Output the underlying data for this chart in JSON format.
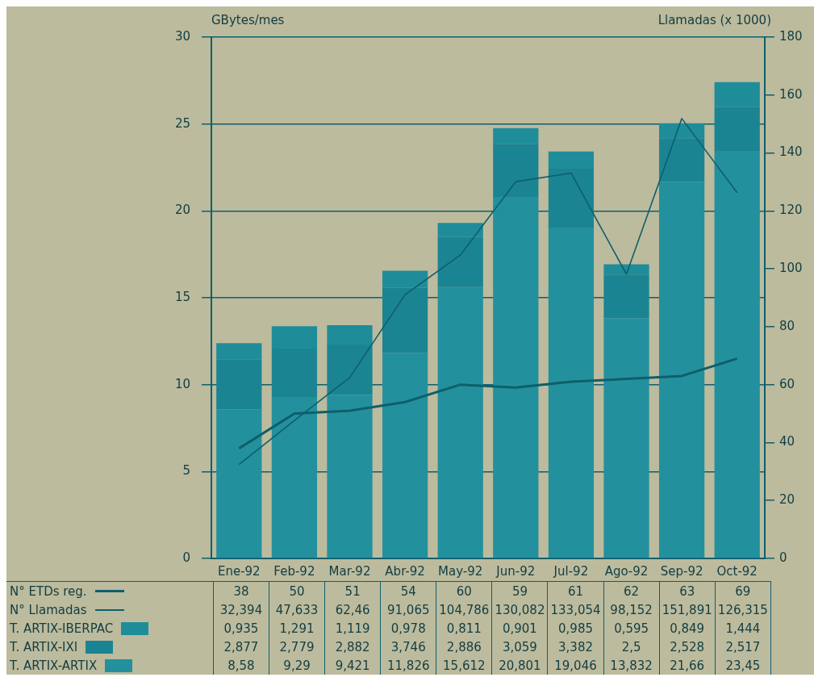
{
  "chart_data": {
    "type": "bar",
    "ylabel": "GBytes/mes",
    "y2label": "Llamadas (x 1000)",
    "categories": [
      "Ene-92",
      "Feb-92",
      "Mar-92",
      "Abr-92",
      "May-92",
      "Jun-92",
      "Jul-92",
      "Ago-92",
      "Sep-92",
      "Oct-92"
    ],
    "stacked": true,
    "grid": "y",
    "legend": "bottom",
    "marker": "none",
    "line_style": "solid",
    "ylim": [
      0,
      30
    ],
    "yticks": [
      0,
      5,
      10,
      15,
      20,
      25,
      30
    ],
    "y2lim": [
      0,
      180
    ],
    "y2ticks": [
      0,
      20,
      40,
      60,
      80,
      100,
      120,
      140,
      160,
      180
    ],
    "series": [
      {
        "name": "N° ETDs reg.",
        "type": "line",
        "axis": "y2",
        "color": "#0e5f6b",
        "values": [
          38,
          50,
          51,
          54,
          60,
          59,
          61,
          62,
          63,
          69
        ],
        "value_labels": [
          "38",
          "50",
          "51",
          "54",
          "60",
          "59",
          "61",
          "62",
          "63",
          "69"
        ]
      },
      {
        "name": "N° Llamadas",
        "type": "line",
        "axis": "y2",
        "color": "#0e5f6b",
        "values": [
          32.394,
          47.633,
          62.46,
          91.065,
          104.786,
          130.082,
          133.054,
          98.152,
          151.891,
          126.315
        ],
        "value_labels": [
          "32,394",
          "47,633",
          "62,46",
          "91,065",
          "104,786",
          "130,082",
          "133,054",
          "98,152",
          "151,891",
          "126,315"
        ]
      },
      {
        "name": "T. ARTIX-ARTIX",
        "color": "#23909e",
        "values": [
          8.58,
          9.29,
          9.421,
          11.826,
          15.612,
          20.801,
          19.046,
          13.832,
          21.66,
          23.45
        ],
        "value_labels": [
          "8,58",
          "9,29",
          "9,421",
          "11,826",
          "15,612",
          "20,801",
          "19,046",
          "13,832",
          "21,66",
          "23,45"
        ]
      },
      {
        "name": "T. ARTIX-IXI",
        "color": "#1b8492",
        "values": [
          2.877,
          2.779,
          2.882,
          3.746,
          2.886,
          3.059,
          3.382,
          2.5,
          2.528,
          2.517
        ],
        "value_labels": [
          "2,877",
          "2,779",
          "2,882",
          "3,746",
          "2,886",
          "3,059",
          "3,382",
          "2,5",
          "2,528",
          "2,517"
        ]
      },
      {
        "name": "T. ARTIX-IBERPAC",
        "color": "#1f8c9a",
        "values": [
          0.935,
          1.291,
          1.119,
          0.978,
          0.811,
          0.901,
          0.985,
          0.595,
          0.849,
          1.444
        ],
        "value_labels": [
          "0,935",
          "1,291",
          "1,119",
          "0,978",
          "0,811",
          "0,901",
          "0,985",
          "0,595",
          "0,849",
          "1,444"
        ]
      }
    ]
  }
}
